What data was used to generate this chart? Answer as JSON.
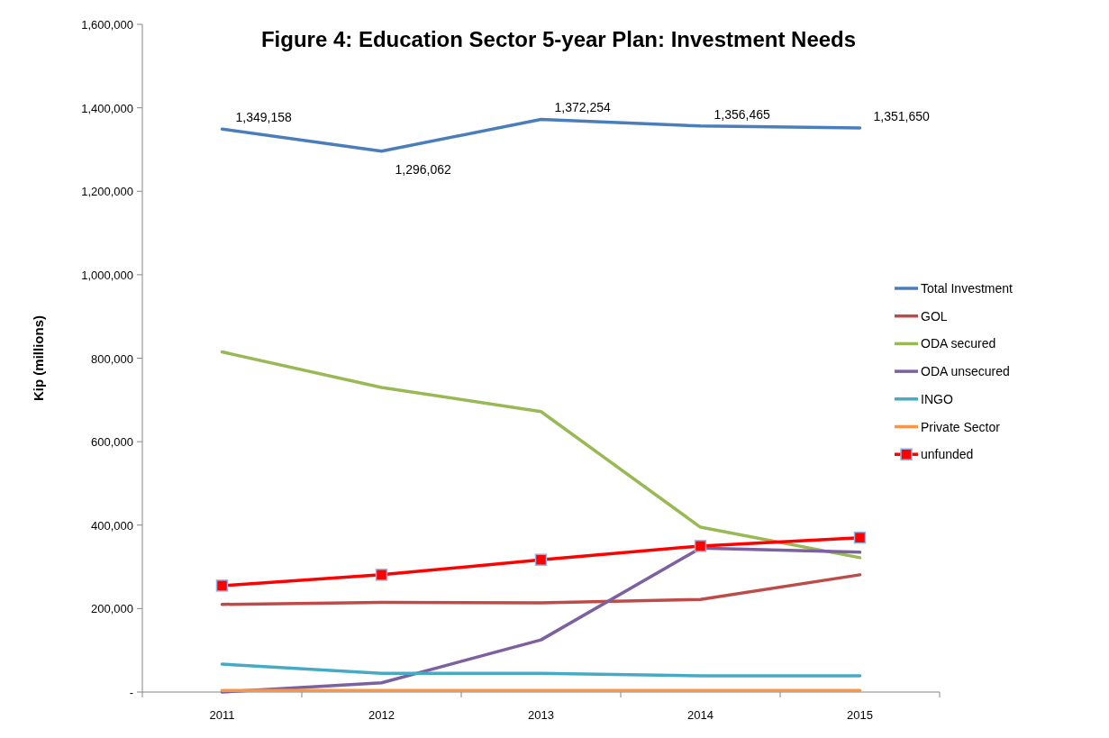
{
  "chart_data": {
    "type": "line",
    "title": "Figure 4: Education Sector 5-year Plan: Investment Needs",
    "ylabel": "Kip (millions)",
    "categories": [
      "2011",
      "2012",
      "2013",
      "2014",
      "2015"
    ],
    "series": [
      {
        "name": "Total Investment",
        "color": "#4a7ebb",
        "values": [
          1349158,
          1296062,
          1372254,
          1356465,
          1351650
        ],
        "value_labels": [
          "1,349,158",
          "1,296,062",
          "1,372,254",
          "1,356,465",
          "1,351,650"
        ]
      },
      {
        "name": "GOL",
        "color": "#be4b48",
        "values": [
          210000,
          215000,
          214000,
          222000,
          281000
        ]
      },
      {
        "name": "ODA secured",
        "color": "#98b954",
        "values": [
          815000,
          730000,
          672000,
          395000,
          322000
        ]
      },
      {
        "name": "ODA unsecured",
        "color": "#7d60a0",
        "values": [
          0,
          22000,
          125000,
          345000,
          335000
        ]
      },
      {
        "name": "INGO",
        "color": "#46aac5",
        "values": [
          67000,
          45000,
          45000,
          39000,
          39000
        ]
      },
      {
        "name": "Private Sector",
        "color": "#f79646",
        "values": [
          4000,
          4000,
          4000,
          4000,
          4000
        ]
      },
      {
        "name": "unfunded",
        "color": "#ff0000",
        "values": [
          255000,
          281000,
          317000,
          350000,
          370000
        ],
        "marker": "square"
      }
    ],
    "ylim": [
      0,
      1600000
    ],
    "yticks": [
      {
        "value": 0,
        "label": "-"
      },
      {
        "value": 200000,
        "label": "200,000"
      },
      {
        "value": 400000,
        "label": "400,000"
      },
      {
        "value": 600000,
        "label": "600,000"
      },
      {
        "value": 800000,
        "label": "800,000"
      },
      {
        "value": 1000000,
        "label": "1,000,000"
      },
      {
        "value": 1200000,
        "label": "1,200,000"
      },
      {
        "value": 1400000,
        "label": "1,400,000"
      },
      {
        "value": 1600000,
        "label": "1,600,000"
      }
    ],
    "legend": "right",
    "marker": "none",
    "grid": false
  }
}
